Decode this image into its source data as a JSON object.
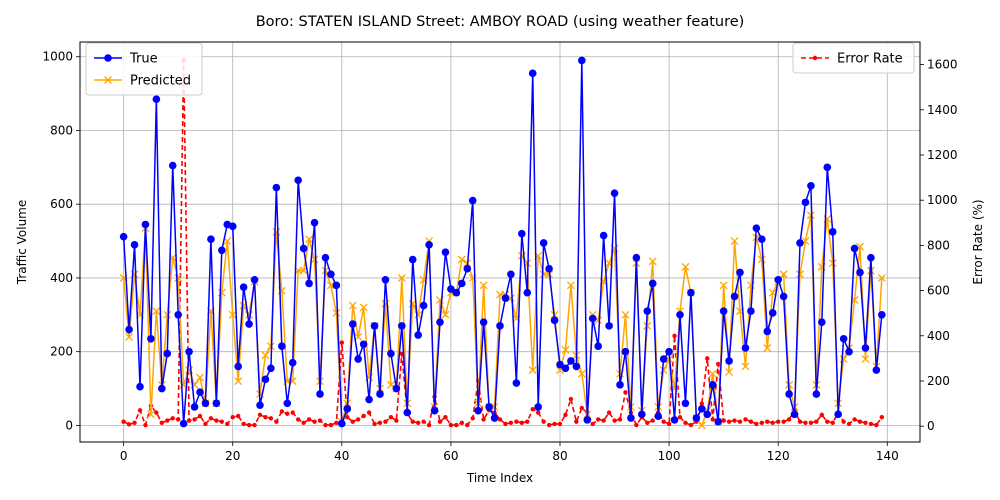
{
  "chart_data": {
    "type": "line",
    "title": "Boro: STATEN ISLAND Street: AMBOY ROAD (using weather feature)",
    "xlabel": "Time Index",
    "ylabel_left": "Traffic Volume",
    "ylabel_right": "Error Rate (%)",
    "xlim": [
      -8,
      146
    ],
    "ylim_left": [
      -45,
      1040
    ],
    "ylim_right": [
      -70,
      1700
    ],
    "x_ticks": [
      0,
      20,
      40,
      60,
      80,
      100,
      120,
      140
    ],
    "y_ticks_left": [
      0,
      200,
      400,
      600,
      800,
      1000
    ],
    "y_ticks_right": [
      0,
      200,
      400,
      600,
      800,
      1000,
      1200,
      1400,
      1600
    ],
    "grid": true,
    "legend_left_position": "upper-left",
    "legend_right_position": "upper-right",
    "colors": {
      "true": "#0000ff",
      "predicted": "#ffa500",
      "error": "#ff0000"
    },
    "series": [
      {
        "name": "True",
        "axis": "left",
        "marker": "circle",
        "values": [
          512,
          260,
          490,
          105,
          545,
          235,
          885,
          100,
          195,
          705,
          300,
          5,
          200,
          50,
          90,
          60,
          505,
          60,
          475,
          545,
          540,
          160,
          375,
          275,
          395,
          55,
          125,
          155,
          645,
          215,
          60,
          170,
          665,
          480,
          385,
          550,
          85,
          455,
          410,
          380,
          5,
          45,
          275,
          180,
          220,
          70,
          270,
          85,
          395,
          195,
          100,
          270,
          35,
          450,
          245,
          325,
          490,
          40,
          280,
          470,
          370,
          360,
          385,
          425,
          610,
          40,
          280,
          50,
          20,
          270,
          345,
          410,
          115,
          520,
          360,
          955,
          50,
          495,
          425,
          285,
          165,
          155,
          175,
          160,
          990,
          15,
          290,
          215,
          515,
          270,
          630,
          110,
          200,
          20,
          455,
          30,
          310,
          385,
          25,
          180,
          200,
          15,
          300,
          60,
          360,
          20,
          45,
          30,
          110,
          10,
          310,
          175,
          350,
          415,
          210,
          310,
          535,
          505,
          255,
          305,
          395,
          350,
          85,
          30,
          495,
          605,
          650,
          85,
          280,
          700,
          525,
          30,
          235,
          200,
          480,
          415,
          210,
          455,
          150,
          300
        ]
      },
      {
        "name": "Predicted",
        "axis": "left",
        "marker": "x",
        "values": [
          400,
          240,
          410,
          300,
          535,
          30,
          310,
          110,
          300,
          455,
          400,
          110,
          150,
          110,
          130,
          60,
          310,
          60,
          360,
          500,
          300,
          120,
          325,
          300,
          390,
          85,
          190,
          215,
          525,
          365,
          120,
          120,
          420,
          420,
          505,
          450,
          120,
          420,
          380,
          305,
          10,
          60,
          325,
          240,
          320,
          130,
          270,
          100,
          330,
          110,
          100,
          400,
          60,
          330,
          300,
          395,
          500,
          50,
          340,
          300,
          360,
          360,
          450,
          440,
          400,
          60,
          380,
          50,
          50,
          355,
          355,
          345,
          290,
          460,
          440,
          150,
          460,
          410,
          410,
          300,
          150,
          205,
          380,
          190,
          140,
          30,
          300,
          285,
          390,
          440,
          480,
          140,
          300,
          50,
          440,
          40,
          270,
          445,
          50,
          150,
          180,
          100,
          310,
          430,
          360,
          20,
          0,
          40,
          140,
          10,
          380,
          145,
          500,
          310,
          160,
          380,
          510,
          450,
          210,
          360,
          390,
          410,
          110,
          50,
          410,
          500,
          570,
          110,
          430,
          560,
          440,
          60,
          180,
          210,
          340,
          485,
          180,
          420,
          160,
          400
        ]
      },
      {
        "name": "Error Rate",
        "axis": "right",
        "style": "dashed",
        "marker": "dot",
        "values": [
          20,
          8,
          15,
          70,
          5,
          90,
          60,
          15,
          25,
          35,
          30,
          1620,
          25,
          30,
          45,
          10,
          35,
          25,
          20,
          10,
          40,
          45,
          10,
          5,
          5,
          50,
          40,
          35,
          20,
          65,
          55,
          60,
          30,
          15,
          30,
          20,
          25,
          5,
          5,
          15,
          370,
          40,
          20,
          30,
          45,
          60,
          10,
          15,
          20,
          40,
          25,
          320,
          55,
          20,
          15,
          20,
          5,
          130,
          20,
          40,
          5,
          5,
          15,
          5,
          35,
          200,
          30,
          70,
          60,
          30,
          10,
          15,
          20,
          15,
          20,
          75,
          60,
          20,
          5,
          10,
          10,
          50,
          120,
          20,
          80,
          60,
          10,
          30,
          25,
          60,
          25,
          30,
          150,
          60,
          5,
          40,
          15,
          25,
          60,
          20,
          10,
          400,
          40,
          15,
          5,
          20,
          100,
          300,
          30,
          275,
          25,
          20,
          25,
          20,
          30,
          20,
          10,
          15,
          20,
          15,
          20,
          20,
          30,
          70,
          20,
          15,
          15,
          20,
          50,
          20,
          15,
          60,
          20,
          10,
          30,
          20,
          15,
          10,
          5,
          40
        ]
      }
    ]
  }
}
